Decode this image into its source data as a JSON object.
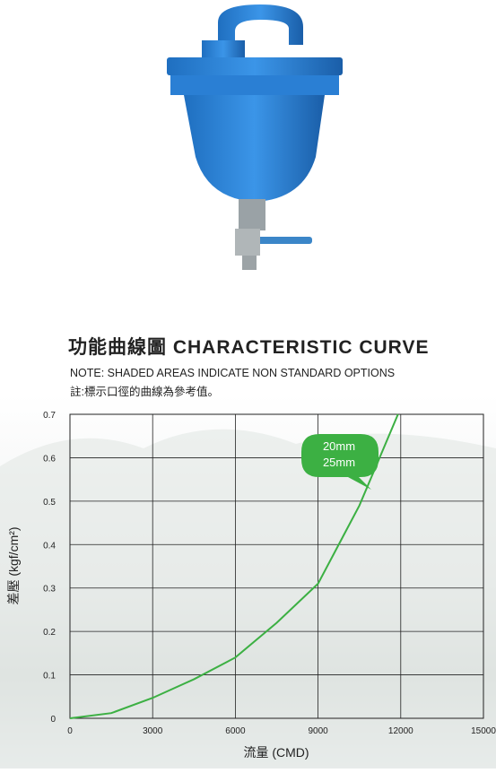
{
  "chart_data": {
    "type": "line",
    "title": "功能曲線圖 CHARACTERISTIC CURVE",
    "notes": [
      "NOTE: SHADED AREAS INDICATE NON STANDARD OPTIONS",
      "註:標示口徑的曲線為參考值。"
    ],
    "x_label": "流量 (CMD)",
    "y_label": "差壓 (kgf/cm²)",
    "x": [
      0,
      1500,
      3000,
      4500,
      6000,
      7500,
      9000,
      10500,
      11900
    ],
    "values": [
      0,
      0.012,
      0.047,
      0.09,
      0.14,
      0.22,
      0.31,
      0.49,
      0.7
    ],
    "color": "#3cb043",
    "annotation": [
      "20mm",
      "25mm"
    ],
    "xlim": [
      0,
      15000
    ],
    "xticks": [
      0,
      3000,
      6000,
      9000,
      12000,
      15000
    ],
    "ylim": [
      0,
      0.7
    ],
    "yticks": [
      0,
      0.1,
      0.2,
      0.3,
      0.4,
      0.5,
      0.6,
      0.7
    ],
    "grid": true
  }
}
